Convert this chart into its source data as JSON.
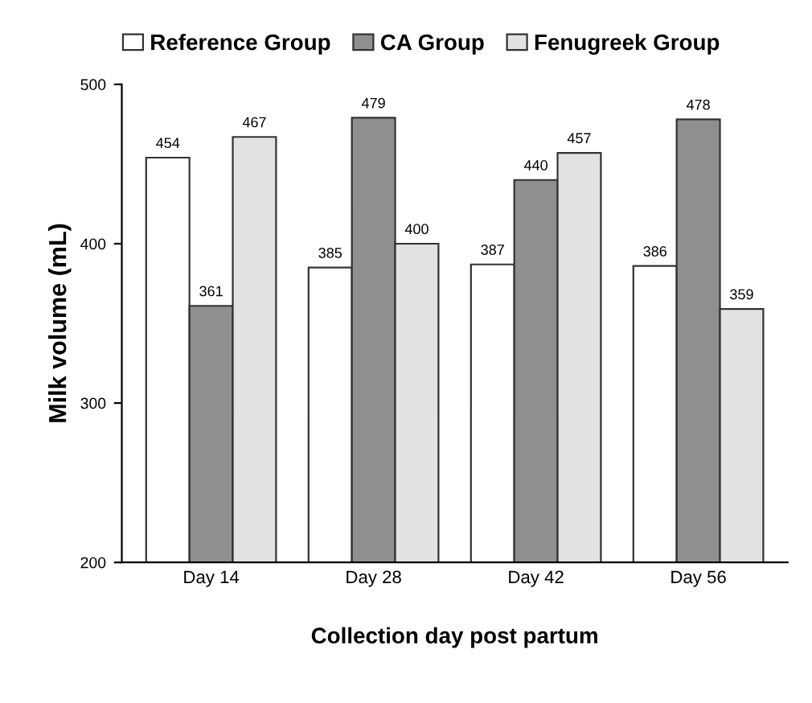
{
  "chart_data": {
    "type": "bar",
    "xlabel": "Collection day post partum",
    "ylabel": "Milk volume (mL)",
    "categories": [
      "Day 14",
      "Day 28",
      "Day 42",
      "Day 56"
    ],
    "series": [
      {
        "name": "Reference Group",
        "color": "#ffffff",
        "values": [
          454,
          385,
          387,
          386
        ]
      },
      {
        "name": "CA Group",
        "color": "#8f8f8f",
        "values": [
          361,
          479,
          440,
          478
        ]
      },
      {
        "name": "Fenugreek Group",
        "color": "#e2e2e2",
        "values": [
          467,
          400,
          457,
          359
        ]
      }
    ],
    "ylim": [
      200,
      500
    ],
    "yticks": [
      200,
      300,
      400,
      500
    ],
    "data_labels": true,
    "legend": "top",
    "grid": false
  }
}
